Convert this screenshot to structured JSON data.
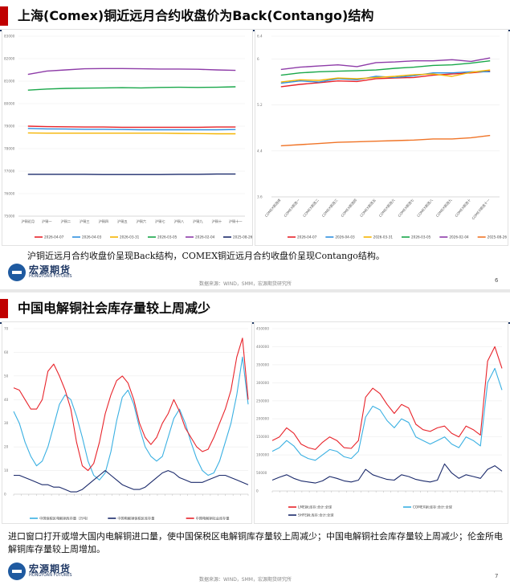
{
  "slide1": {
    "title": "上海(Comex)铜近远月合约收盘价为Back(Contango)结构",
    "caption": "沪铜近远月合约收盘价呈现Back结构，COMEX铜近远月合约收盘价呈现Contango结构。",
    "logo_cn": "宏源期货",
    "logo_en": "HONGYUAN FUTURES",
    "source": "数据来源：WIND，SMM，宏源期货研究所",
    "page": "6"
  },
  "slide2": {
    "title": "中国电解铜社会库存量较上周减少",
    "caption": "进口窗口打开或增大国内电解铜进口量，使中国保税区电解铜库存量较上周减少；中国电解铜社会库存量较上周减少；伦金所电解铜库存量较上周增加。",
    "logo_cn": "宏源期货",
    "logo_en": "HONGYUAN FUTURES",
    "source": "数据来源：WIND，SMM，宏源期货研究所",
    "page": "7"
  },
  "chart_data": [
    {
      "type": "line",
      "ylim": [
        75000,
        83000
      ],
      "yticks": [
        "75000",
        "76000",
        "77000",
        "78000",
        "79000",
        "80000",
        "81000",
        "82000",
        "83000"
      ],
      "categories": [
        "沪铜近月",
        "沪铜一",
        "沪铜二",
        "沪铜三",
        "沪铜四",
        "沪铜五",
        "沪铜六",
        "沪铜七",
        "沪铜八",
        "沪铜九",
        "沪铜十",
        "沪铜十一"
      ],
      "series": [
        {
          "name": "2026-04-07",
          "color": "#e8232a",
          "values": [
            79000,
            78980,
            78970,
            78960,
            78960,
            78950,
            78950,
            78950,
            78950,
            78950,
            78960,
            78960
          ]
        },
        {
          "name": "2026-04-03",
          "color": "#2f8fe0",
          "values": [
            78900,
            78880,
            78870,
            78860,
            78860,
            78850,
            78840,
            78840,
            78840,
            78840,
            78840,
            78850
          ]
        },
        {
          "name": "2026-03-31",
          "color": "#f5b400",
          "values": [
            78700,
            78690,
            78690,
            78690,
            78690,
            78690,
            78690,
            78690,
            78680,
            78670,
            78660,
            78660
          ]
        },
        {
          "name": "2026-03-05",
          "color": "#19a74a",
          "values": [
            80600,
            80650,
            80680,
            80690,
            80700,
            80710,
            80700,
            80720,
            80730,
            80720,
            80730,
            80750
          ]
        },
        {
          "name": "2026-02-04",
          "color": "#8e3ca8",
          "values": [
            81300,
            81450,
            81500,
            81550,
            81560,
            81560,
            81550,
            81540,
            81540,
            81530,
            81500,
            81480
          ]
        },
        {
          "name": "2025-08-26",
          "color": "#1b2a6b",
          "values": [
            76860,
            76860,
            76860,
            76860,
            76850,
            76850,
            76850,
            76850,
            76860,
            76860,
            76870,
            76870
          ]
        }
      ]
    },
    {
      "type": "line",
      "ylim": [
        3.6,
        6.4
      ],
      "yticks": [
        "3.6",
        "4.4",
        "5.2",
        "6",
        "6.4"
      ],
      "categories": [
        "COMEX铜连续",
        "COMEX铜连一",
        "COMEX铜连二",
        "COMEX铜连三",
        "COMEX铜连四",
        "COMEX铜连五",
        "COMEX铜连六",
        "COMEX铜连七",
        "COMEX铜连八",
        "COMEX铜连九",
        "COMEX铜连十",
        "COMEX铜连十一"
      ],
      "series": [
        {
          "name": "2026-04-07",
          "color": "#e8232a",
          "values": [
            5.52,
            5.56,
            5.59,
            5.62,
            5.61,
            5.66,
            5.67,
            5.68,
            5.72,
            5.74,
            5.76,
            5.79
          ]
        },
        {
          "name": "2026-04-03",
          "color": "#2f8fe0",
          "values": [
            5.58,
            5.62,
            5.6,
            5.66,
            5.64,
            5.7,
            5.68,
            5.71,
            5.76,
            5.76,
            5.78,
            5.78
          ]
        },
        {
          "name": "2026-03-31",
          "color": "#f5b400",
          "values": [
            5.6,
            5.64,
            5.63,
            5.67,
            5.66,
            5.68,
            5.7,
            5.73,
            5.74,
            5.7,
            5.77,
            5.81
          ]
        },
        {
          "name": "2026-03-05",
          "color": "#19a74a",
          "values": [
            5.72,
            5.76,
            5.78,
            5.79,
            5.8,
            5.81,
            5.84,
            5.86,
            5.89,
            5.9,
            5.93,
            5.97
          ]
        },
        {
          "name": "2026-02-04",
          "color": "#8e3ca8",
          "values": [
            5.82,
            5.86,
            5.88,
            5.9,
            5.87,
            5.94,
            5.95,
            5.97,
            5.97,
            5.99,
            5.96,
            6.02
          ]
        },
        {
          "name": "2025-08-26",
          "color": "#f07427",
          "values": [
            4.49,
            4.51,
            4.53,
            4.55,
            4.56,
            4.57,
            4.58,
            4.59,
            4.61,
            4.61,
            4.63,
            4.67
          ]
        }
      ]
    },
    {
      "type": "line",
      "ylim": [
        0,
        70
      ],
      "yticks": [
        "0",
        "10",
        "20",
        "30",
        "40",
        "50",
        "60",
        "70"
      ],
      "series": [
        {
          "name": "中国保税区电解铜库存量（万吨）",
          "color": "#3ab0e2",
          "values": [
            35,
            30,
            22,
            16,
            12,
            14,
            20,
            29,
            38,
            42,
            40,
            33,
            24,
            14,
            8,
            6,
            9,
            18,
            31,
            41,
            44,
            38,
            28,
            20,
            16,
            14,
            16,
            24,
            32,
            36,
            30,
            22,
            15,
            10,
            8,
            9,
            14,
            22,
            30,
            42,
            58,
            38
          ]
        },
        {
          "name": "中国电解铜保税区库存量",
          "color": "#1b2a6b",
          "values": [
            8,
            8,
            7,
            6,
            5,
            4,
            4,
            3,
            3,
            2,
            1,
            1,
            2,
            4,
            6,
            8,
            10,
            8,
            6,
            4,
            3,
            2,
            2,
            3,
            5,
            7,
            9,
            10,
            9,
            7,
            6,
            5,
            5,
            5,
            6,
            7,
            8,
            8,
            7,
            6,
            5,
            4
          ]
        },
        {
          "name": "中国电解铜社会库存量",
          "color": "#e8232a",
          "values": [
            45,
            44,
            40,
            36,
            36,
            40,
            52,
            55,
            50,
            44,
            36,
            22,
            12,
            10,
            13,
            22,
            34,
            42,
            48,
            50,
            47,
            40,
            30,
            24,
            21,
            24,
            30,
            34,
            40,
            35,
            28,
            24,
            20,
            18,
            19,
            24,
            30,
            36,
            44,
            58,
            66,
            40
          ]
        }
      ]
    },
    {
      "type": "line",
      "ylim": [
        0,
        450000
      ],
      "yticks": [
        "0",
        "50000",
        "100000",
        "150000",
        "200000",
        "250000",
        "300000",
        "350000",
        "400000",
        "450000"
      ],
      "series": [
        {
          "name": "LME铜:库存:合计:全球",
          "color": "#e8232a",
          "values": [
            140000,
            150000,
            175000,
            160000,
            130000,
            120000,
            115000,
            135000,
            150000,
            140000,
            120000,
            118000,
            140000,
            260000,
            285000,
            270000,
            240000,
            215000,
            240000,
            230000,
            185000,
            170000,
            165000,
            175000,
            180000,
            160000,
            150000,
            180000,
            170000,
            155000,
            360000,
            400000,
            340000
          ]
        },
        {
          "name": "COMEX铜:库存:合计:全球",
          "color": "#3ab0e2",
          "values": [
            110000,
            120000,
            140000,
            125000,
            100000,
            90000,
            85000,
            100000,
            115000,
            110000,
            95000,
            90000,
            110000,
            205000,
            235000,
            225000,
            195000,
            175000,
            200000,
            190000,
            150000,
            140000,
            130000,
            140000,
            150000,
            130000,
            120000,
            150000,
            140000,
            125000,
            300000,
            340000,
            280000
          ]
        },
        {
          "name": "SHFE铜:库存:合计:全球",
          "color": "#1b2a6b",
          "values": [
            30000,
            38000,
            45000,
            35000,
            28000,
            25000,
            22000,
            28000,
            40000,
            35000,
            28000,
            25000,
            30000,
            60000,
            45000,
            38000,
            32000,
            30000,
            45000,
            40000,
            32000,
            28000,
            25000,
            30000,
            75000,
            50000,
            35000,
            45000,
            40000,
            35000,
            60000,
            70000,
            55000
          ]
        }
      ]
    }
  ]
}
